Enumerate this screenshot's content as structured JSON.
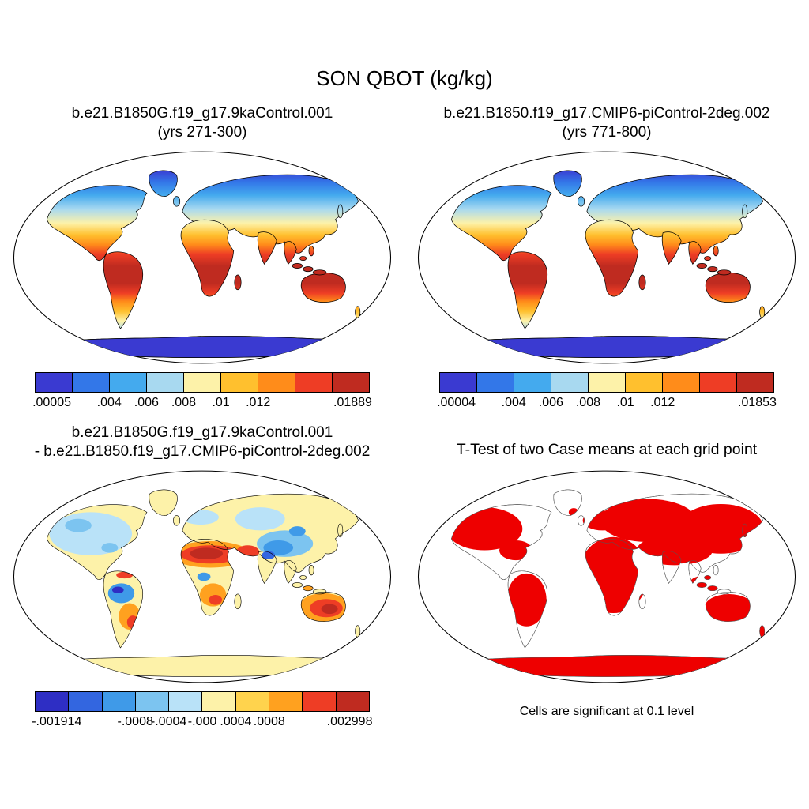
{
  "figure": {
    "suptitle": "SON QBOT (kg/kg)",
    "panels": [
      {
        "id": "case1",
        "title_line1": "b.e21.B1850G.f19_g17.9kaControl.001",
        "title_line2": "(yrs 271-300)",
        "map_mode": "clim",
        "colorbar": {
          "colors": [
            "#3a3ad1",
            "#3377e8",
            "#44aaee",
            "#a8d9f0",
            "#fdf2a9",
            "#ffc02e",
            "#ff8c1a",
            "#ee3d25",
            "#bf2b20"
          ],
          "labels": [
            ".00005",
            ".004",
            ".006",
            ".008",
            ".01",
            ".012",
            ".01889"
          ],
          "fractions": [
            0,
            0.2222,
            0.3333,
            0.4444,
            0.5556,
            0.6667,
            1
          ]
        }
      },
      {
        "id": "case2",
        "title_line1": "b.e21.B1850.f19_g17.CMIP6-piControl-2deg.002",
        "title_line2": "(yrs 771-800)",
        "map_mode": "clim",
        "colorbar": {
          "colors": [
            "#3a3ad1",
            "#3377e8",
            "#44aaee",
            "#a8d9f0",
            "#fdf2a9",
            "#ffc02e",
            "#ff8c1a",
            "#ee3d25",
            "#bf2b20"
          ],
          "labels": [
            ".00004",
            ".004",
            ".006",
            ".008",
            ".01",
            ".012",
            ".01853"
          ],
          "fractions": [
            0,
            0.2222,
            0.3333,
            0.4444,
            0.5556,
            0.6667,
            1
          ]
        }
      },
      {
        "id": "diff",
        "title_line1": "b.e21.B1850G.f19_g17.9kaControl.001",
        "title_line2": "- b.e21.B1850.f19_g17.CMIP6-piControl-2deg.002",
        "map_mode": "diff",
        "colorbar": {
          "colors": [
            "#2e2ec4",
            "#3366e0",
            "#3f9ae8",
            "#7cc4f0",
            "#b9e2f8",
            "#fdf2a9",
            "#ffd34d",
            "#ffa11f",
            "#ee3d25",
            "#bf2b20"
          ],
          "labels": [
            "-.001914",
            "-.0008",
            "-.0004",
            "-.000",
            ".0004",
            ".0008",
            ".002998"
          ],
          "fractions": [
            0,
            0.3,
            0.4,
            0.5,
            0.6,
            0.7,
            1
          ]
        }
      },
      {
        "id": "ttest",
        "title_line1": "T-Test of two Case means at each grid point",
        "map_mode": "ttest",
        "caption": "Cells are significant at 0.1 level",
        "significance_color": "#ee0000"
      }
    ]
  },
  "chart_data": [
    {
      "type": "heatmap",
      "subtype": "global_map",
      "variable": "QBOT",
      "season": "SON",
      "units": "kg/kg",
      "title": "b.e21.B1850G.f19_g17.9kaControl.001 (yrs 271-300)",
      "value_min": 5e-05,
      "value_max": 0.01889,
      "colorbar_ticks": [
        5e-05,
        0.004,
        0.006,
        0.008,
        0.01,
        0.012,
        0.01889
      ],
      "colorbar_colors": [
        "#3a3ad1",
        "#3377e8",
        "#44aaee",
        "#a8d9f0",
        "#fdf2a9",
        "#ffc02e",
        "#ff8c1a",
        "#ee3d25",
        "#bf2b20"
      ]
    },
    {
      "type": "heatmap",
      "subtype": "global_map",
      "variable": "QBOT",
      "season": "SON",
      "units": "kg/kg",
      "title": "b.e21.B1850.f19_g17.CMIP6-piControl-2deg.002 (yrs 771-800)",
      "value_min": 4e-05,
      "value_max": 0.01853,
      "colorbar_ticks": [
        4e-05,
        0.004,
        0.006,
        0.008,
        0.01,
        0.012,
        0.01853
      ],
      "colorbar_colors": [
        "#3a3ad1",
        "#3377e8",
        "#44aaee",
        "#a8d9f0",
        "#fdf2a9",
        "#ffc02e",
        "#ff8c1a",
        "#ee3d25",
        "#bf2b20"
      ]
    },
    {
      "type": "heatmap",
      "subtype": "global_map_difference",
      "variable": "QBOT",
      "season": "SON",
      "units": "kg/kg",
      "title": "b.e21.B1850G.f19_g17.9kaControl.001 - b.e21.B1850.f19_g17.CMIP6-piControl-2deg.002",
      "value_min": -0.001914,
      "value_max": 0.002998,
      "colorbar_ticks": [
        -0.001914,
        -0.0008,
        -0.0004,
        0,
        0.0004,
        0.0008,
        0.002998
      ],
      "colorbar_colors": [
        "#2e2ec4",
        "#3366e0",
        "#3f9ae8",
        "#7cc4f0",
        "#b9e2f8",
        "#fdf2a9",
        "#ffd34d",
        "#ffa11f",
        "#ee3d25",
        "#bf2b20"
      ]
    },
    {
      "type": "heatmap",
      "subtype": "significance_mask",
      "title": "T-Test of two Case means at each grid point",
      "note": "Cells are significant at 0.1 level",
      "significance_level": 0.1,
      "colorbar_colors": [
        "#ee0000"
      ]
    }
  ]
}
